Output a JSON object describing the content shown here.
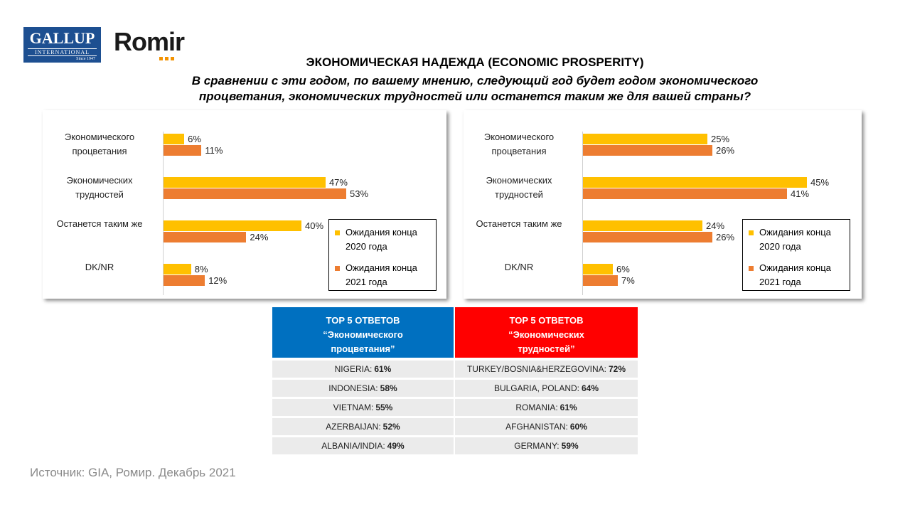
{
  "logos": {
    "gallup": "GALLUP",
    "gallup_sub": "INTERNATIONAL",
    "gallup_since": "Since 1947",
    "romir": "Romir"
  },
  "header": {
    "title": "ЭКОНОМИЧЕСКАЯ  НАДЕЖДА (ECONOMIC  PROSPERITY)",
    "subtitle_lines": [
      "В сравнении с эти годом, по вашему мнению, следующий год будет годом экономического",
      "процветания, экономических трудностей или останется таким же для вашей страны?"
    ]
  },
  "chart_data": [
    {
      "type": "bar",
      "orientation": "horizontal",
      "legend": "lower right",
      "categories": [
        "Экономического процветания",
        "Экономических трудностей",
        "Останется таким же",
        "DK/NR"
      ],
      "series": [
        {
          "name": "Ожидания конца 2020 года",
          "color": "#FFC000",
          "values": [
            6,
            47,
            40,
            8
          ],
          "value_labels": [
            "6%",
            "47%",
            "40%",
            "8%"
          ]
        },
        {
          "name": "Ожидания конца 2021 года",
          "color": "#ED7D31",
          "values": [
            11,
            53,
            24,
            12
          ],
          "value_labels": [
            "11%",
            "53%",
            "24%",
            "12%"
          ]
        }
      ]
    },
    {
      "type": "bar",
      "orientation": "horizontal",
      "legend": "lower right",
      "categories": [
        "Экономического процветания",
        "Экономических трудностей",
        "Останется таким же",
        "DK/NR"
      ],
      "series": [
        {
          "name": "Ожидания конца 2020 года",
          "color": "#FFC000",
          "values": [
            25,
            45,
            24,
            6
          ],
          "value_labels": [
            "25%",
            "45%",
            "24%",
            "6%"
          ]
        },
        {
          "name": "Ожидания конца 2021 года",
          "color": "#ED7D31",
          "values": [
            26,
            41,
            26,
            7
          ],
          "value_labels": [
            "26%",
            "41%",
            "26%",
            "7%"
          ]
        }
      ]
    }
  ],
  "table": {
    "headers": [
      {
        "title": "TOP 5 ОТВЕТОВ",
        "subtitle": "“Экономического процветания”",
        "color": "#0070C0"
      },
      {
        "title": "TOP 5 ОТВЕТОВ",
        "subtitle": "“Экономических трудностей”",
        "color": "#FF0000"
      }
    ],
    "rows": [
      [
        [
          "NIGERIA:",
          "61%"
        ],
        [
          "TURKEY/BOSNIA&HERZEGOVINA:",
          "72%"
        ]
      ],
      [
        [
          "INDONESIA:",
          "58%"
        ],
        [
          "BULGARIA, POLAND:",
          "64%"
        ]
      ],
      [
        [
          "VIETNAM:",
          "55%"
        ],
        [
          "ROMANIA:",
          "61%"
        ]
      ],
      [
        [
          "AZERBAIJAN:",
          "52%"
        ],
        [
          "AFGHANISTAN:",
          "60%"
        ]
      ],
      [
        [
          "ALBANIA/INDIA:",
          "49%"
        ],
        [
          "GERMANY:",
          "59%"
        ]
      ]
    ]
  },
  "source": "Источник: GIA, Ромир. Декабрь 2021"
}
